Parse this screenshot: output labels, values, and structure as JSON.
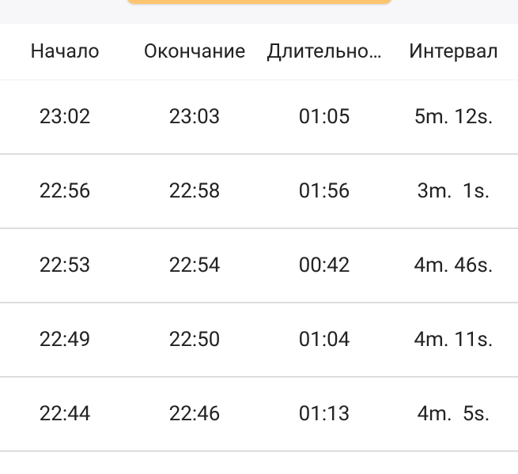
{
  "accent_color": "#fdc56f",
  "columns": [
    "Начало",
    "Окончание",
    "Длительно…",
    "Интервал"
  ],
  "rows": [
    [
      "23:02",
      "23:03",
      "01:05",
      "5m. 12s."
    ],
    [
      "22:56",
      "22:58",
      "01:56",
      "3m.  1s."
    ],
    [
      "22:53",
      "22:54",
      "00:42",
      "4m. 46s."
    ],
    [
      "22:49",
      "22:50",
      "01:04",
      "4m. 11s."
    ],
    [
      "22:44",
      "22:46",
      "01:13",
      "4m.  5s."
    ]
  ]
}
